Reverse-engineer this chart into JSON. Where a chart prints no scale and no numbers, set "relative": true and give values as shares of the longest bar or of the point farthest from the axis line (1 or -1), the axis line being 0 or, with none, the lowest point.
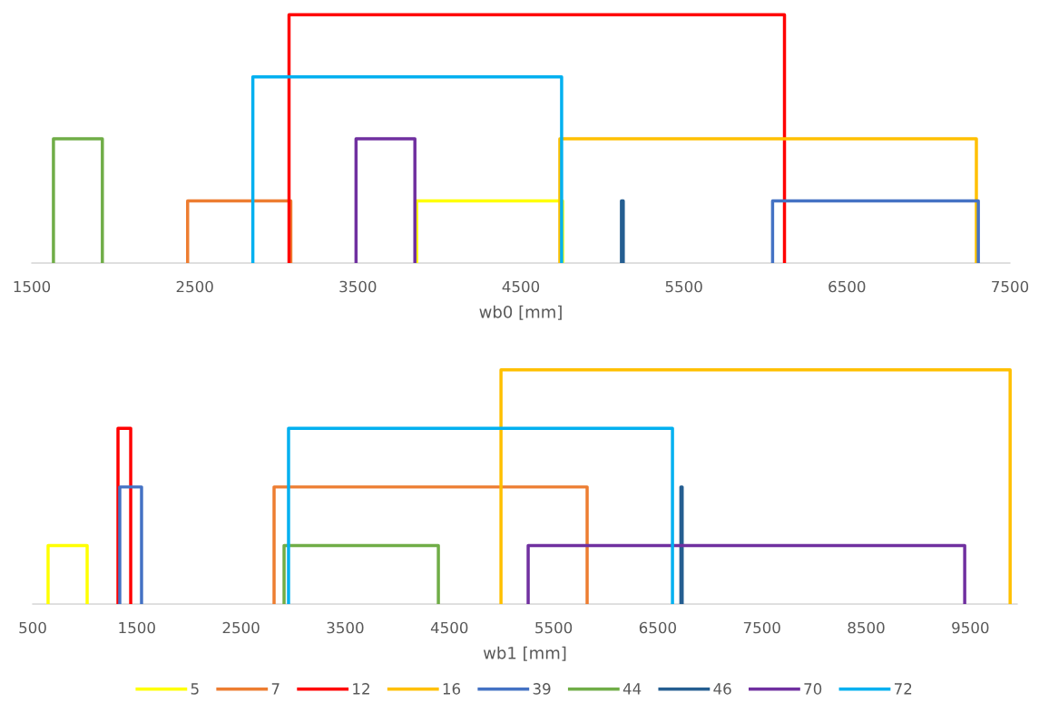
{
  "chart_data": [
    {
      "type": "line",
      "relative": true,
      "xlabel": "wb0 [mm]",
      "xlim": [
        1500,
        7500
      ],
      "xticks": [
        1500,
        2500,
        3500,
        4500,
        5500,
        6500,
        7500
      ],
      "tick_labels": "x",
      "grid": false,
      "legend": "bottom",
      "marker": "none",
      "line_style": "solid",
      "series": [
        {
          "name": "5",
          "color": "#ffff00",
          "x": [
            3861,
            3861,
            4756,
            4756
          ],
          "values": [
            0,
            0.25,
            0.25,
            0
          ]
        },
        {
          "name": "7",
          "color": "#ed7d31",
          "x": [
            2456,
            2456,
            3089,
            3089
          ],
          "values": [
            0,
            0.25,
            0.25,
            0
          ]
        },
        {
          "name": "12",
          "color": "#ff0000",
          "x": [
            3078,
            3078,
            6117,
            6117
          ],
          "values": [
            0,
            1,
            1,
            0
          ]
        },
        {
          "name": "16",
          "color": "#ffc000",
          "x": [
            4739,
            4739,
            7294,
            7294
          ],
          "values": [
            0,
            0.5,
            0.5,
            0
          ]
        },
        {
          "name": "39",
          "color": "#4472c4",
          "x": [
            6044,
            6044,
            7306,
            7306
          ],
          "values": [
            0,
            0.25,
            0.25,
            0
          ]
        },
        {
          "name": "44",
          "color": "#70ad47",
          "x": [
            1633,
            1633,
            1933,
            1933
          ],
          "values": [
            0,
            0.5,
            0.5,
            0
          ]
        },
        {
          "name": "46",
          "color": "#255e91",
          "x": [
            5117,
            5117,
            5128,
            5128
          ],
          "values": [
            0,
            0.25,
            0.25,
            0
          ]
        },
        {
          "name": "70",
          "color": "#7030a0",
          "x": [
            3489,
            3489,
            3850,
            3850
          ],
          "values": [
            0,
            0.5,
            0.5,
            0
          ]
        },
        {
          "name": "72",
          "color": "#00b0f0",
          "x": [
            2856,
            2856,
            4750,
            4750
          ],
          "values": [
            0,
            0.75,
            0.75,
            0
          ]
        }
      ]
    },
    {
      "type": "line",
      "relative": true,
      "xlabel": "wb1 [mm]",
      "xlim": [
        500,
        9950
      ],
      "xticks": [
        500,
        1500,
        2500,
        3500,
        4500,
        5500,
        6500,
        7500,
        8500,
        9500
      ],
      "tick_labels": "x",
      "grid": false,
      "legend": "bottom",
      "marker": "none",
      "line_style": "solid",
      "series": [
        {
          "name": "5",
          "color": "#ffff00",
          "x": [
            648,
            648,
            1023,
            1023
          ],
          "values": [
            0,
            0.25,
            0.25,
            0
          ]
        },
        {
          "name": "7",
          "color": "#ed7d31",
          "x": [
            2817,
            2817,
            5822,
            5822
          ],
          "values": [
            0,
            0.5,
            0.5,
            0
          ]
        },
        {
          "name": "12",
          "color": "#ff0000",
          "x": [
            1319,
            1319,
            1441,
            1441
          ],
          "values": [
            0,
            0.75,
            0.75,
            0
          ]
        },
        {
          "name": "16",
          "color": "#ffc000",
          "x": [
            4995,
            4995,
            9882,
            9882
          ],
          "values": [
            0,
            1,
            1,
            0
          ]
        },
        {
          "name": "39",
          "color": "#4472c4",
          "x": [
            1336,
            1336,
            1545,
            1545
          ],
          "values": [
            0,
            0.5,
            0.5,
            0
          ]
        },
        {
          "name": "44",
          "color": "#70ad47",
          "x": [
            2913,
            2913,
            4394,
            4394
          ],
          "values": [
            0,
            0.25,
            0.25,
            0
          ]
        },
        {
          "name": "46",
          "color": "#255e91",
          "x": [
            6722,
            6722,
            6734,
            6734
          ],
          "values": [
            0,
            0.5,
            0.5,
            0
          ]
        },
        {
          "name": "70",
          "color": "#7030a0",
          "x": [
            5256,
            5256,
            9446,
            9446
          ],
          "values": [
            0,
            0.25,
            0.25,
            0
          ]
        },
        {
          "name": "72",
          "color": "#00b0f0",
          "x": [
            2956,
            2956,
            6641,
            6641
          ],
          "values": [
            0,
            0.75,
            0.75,
            0
          ]
        }
      ]
    }
  ]
}
